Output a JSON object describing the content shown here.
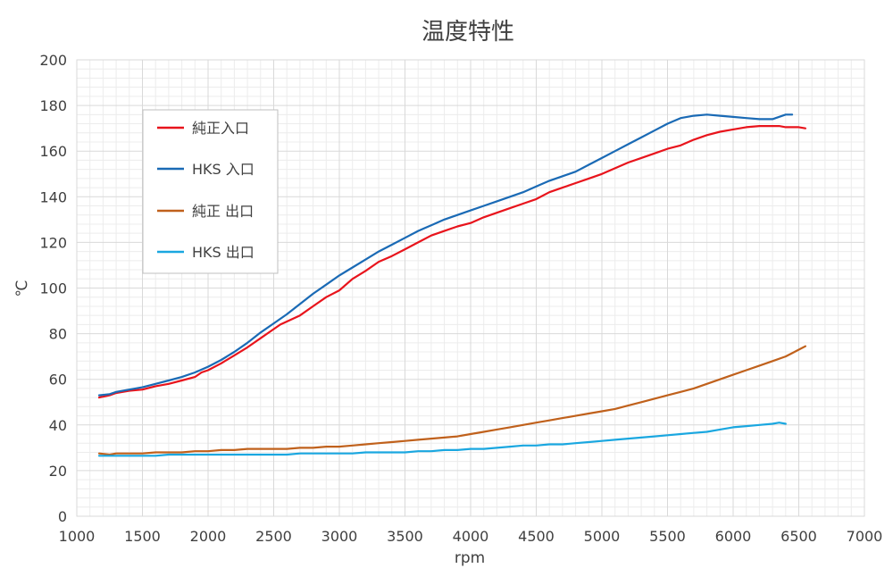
{
  "chart_data": {
    "type": "line",
    "title": "温度特性",
    "xlabel": "rpm",
    "ylabel": "℃",
    "xlim": [
      1000,
      7000
    ],
    "ylim": [
      0,
      200
    ],
    "x_ticks": [
      1000,
      1500,
      2000,
      2500,
      3000,
      3500,
      4000,
      4500,
      5000,
      5500,
      6000,
      6500,
      7000
    ],
    "y_ticks": [
      0,
      20,
      40,
      60,
      80,
      100,
      120,
      140,
      160,
      180,
      200
    ],
    "grid": true,
    "minor_grid": true,
    "legend_position": "top-left",
    "series": [
      {
        "name": "純正入口",
        "color": "#e8141c",
        "x": [
          1170,
          1250,
          1300,
          1400,
          1500,
          1600,
          1700,
          1800,
          1900,
          1950,
          2000,
          2100,
          2200,
          2300,
          2400,
          2500,
          2550,
          2700,
          2800,
          2900,
          3000,
          3100,
          3200,
          3300,
          3400,
          3500,
          3600,
          3700,
          3800,
          3900,
          4000,
          4100,
          4200,
          4300,
          4400,
          4500,
          4600,
          4700,
          4800,
          4900,
          5000,
          5100,
          5200,
          5300,
          5400,
          5500,
          5600,
          5700,
          5800,
          5900,
          6000,
          6100,
          6200,
          6300,
          6350,
          6400,
          6500,
          6550
        ],
        "values": [
          52,
          53,
          54,
          55,
          55.5,
          57,
          58,
          59.5,
          61,
          63,
          64,
          67,
          70.5,
          74,
          78,
          82,
          84,
          88,
          92,
          96,
          99,
          104,
          107.5,
          111.5,
          114,
          117,
          120,
          123,
          125,
          127,
          128.5,
          131,
          133,
          135,
          137,
          139,
          142,
          144,
          146,
          148,
          150,
          152.5,
          155,
          157,
          159,
          161,
          162.5,
          165,
          167,
          168.5,
          169.5,
          170.5,
          171,
          171,
          171,
          170.5,
          170.5,
          170
        ]
      },
      {
        "name": "HKS 入口",
        "color": "#1a6ab5",
        "x": [
          1170,
          1250,
          1300,
          1400,
          1500,
          1600,
          1700,
          1800,
          1900,
          2000,
          2100,
          2200,
          2300,
          2400,
          2500,
          2600,
          2700,
          2800,
          2900,
          3000,
          3100,
          3200,
          3300,
          3400,
          3500,
          3600,
          3700,
          3800,
          3900,
          4000,
          4100,
          4200,
          4300,
          4400,
          4500,
          4600,
          4700,
          4800,
          4900,
          5000,
          5100,
          5200,
          5300,
          5400,
          5500,
          5600,
          5700,
          5800,
          5900,
          6000,
          6100,
          6200,
          6300,
          6400,
          6450
        ],
        "values": [
          53,
          53.5,
          54.5,
          55.5,
          56.5,
          58,
          59.5,
          61,
          63,
          65.5,
          68.5,
          72,
          76,
          80.5,
          84.5,
          88.5,
          93,
          97.5,
          101.5,
          105.5,
          109,
          112.5,
          116,
          119,
          122,
          125,
          127.5,
          130,
          132,
          134,
          136,
          138,
          140,
          142,
          144.5,
          147,
          149,
          151,
          154,
          157,
          160,
          163,
          166,
          169,
          172,
          174.5,
          175.5,
          176,
          175.5,
          175,
          174.5,
          174,
          174,
          176,
          176
        ]
      },
      {
        "name": "純正 出口",
        "color": "#c0611c",
        "x": [
          1170,
          1250,
          1300,
          1400,
          1500,
          1600,
          1700,
          1800,
          1900,
          2000,
          2100,
          2200,
          2300,
          2400,
          2500,
          2600,
          2700,
          2800,
          2900,
          3000,
          3100,
          3200,
          3300,
          3400,
          3500,
          3600,
          3700,
          3800,
          3900,
          4000,
          4100,
          4200,
          4300,
          4400,
          4500,
          4600,
          4700,
          4800,
          4900,
          5000,
          5100,
          5200,
          5300,
          5400,
          5500,
          5600,
          5700,
          5800,
          5900,
          6000,
          6100,
          6200,
          6300,
          6400,
          6500,
          6550
        ],
        "values": [
          27.5,
          27,
          27.5,
          27.5,
          27.5,
          28,
          28,
          28,
          28.5,
          28.5,
          29,
          29,
          29.5,
          29.5,
          29.5,
          29.5,
          30,
          30,
          30.5,
          30.5,
          31,
          31.5,
          32,
          32.5,
          33,
          33.5,
          34,
          34.5,
          35,
          36,
          37,
          38,
          39,
          40,
          41,
          42,
          43,
          44,
          45,
          46,
          47,
          48.5,
          50,
          51.5,
          53,
          54.5,
          56,
          58,
          60,
          62,
          64,
          66,
          68,
          70,
          73,
          74.5
        ]
      },
      {
        "name": "HKS 出口",
        "color": "#1aa7e0",
        "x": [
          1170,
          1250,
          1300,
          1400,
          1500,
          1600,
          1700,
          1800,
          1900,
          2000,
          2100,
          2200,
          2300,
          2400,
          2500,
          2600,
          2700,
          2800,
          2900,
          3000,
          3100,
          3200,
          3300,
          3400,
          3500,
          3600,
          3700,
          3800,
          3900,
          4000,
          4100,
          4200,
          4300,
          4400,
          4500,
          4600,
          4700,
          4800,
          4900,
          5000,
          5100,
          5200,
          5300,
          5400,
          5500,
          5600,
          5700,
          5800,
          5900,
          6000,
          6100,
          6200,
          6300,
          6350,
          6400
        ],
        "values": [
          26.5,
          26.5,
          26.5,
          26.5,
          26.5,
          26.5,
          27,
          27,
          27,
          27,
          27,
          27,
          27,
          27,
          27,
          27,
          27.5,
          27.5,
          27.5,
          27.5,
          27.5,
          28,
          28,
          28,
          28,
          28.5,
          28.5,
          29,
          29,
          29.5,
          29.5,
          30,
          30.5,
          31,
          31,
          31.5,
          31.5,
          32,
          32.5,
          33,
          33.5,
          34,
          34.5,
          35,
          35.5,
          36,
          36.5,
          37,
          38,
          39,
          39.5,
          40,
          40.5,
          41,
          40.5
        ]
      }
    ]
  }
}
